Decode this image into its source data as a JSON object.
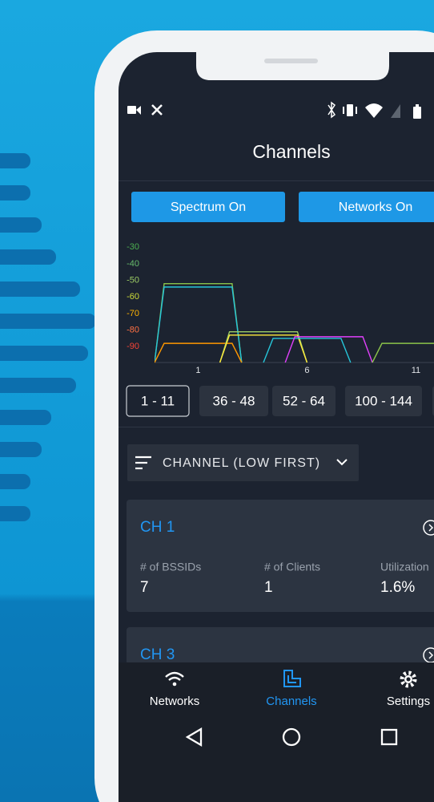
{
  "header": {
    "title": "Channels"
  },
  "toggles": [
    "Spectrum On",
    "Networks On"
  ],
  "spectrum": {
    "yticks": [
      -30,
      -40,
      -50,
      -60,
      -70,
      -80,
      -90
    ],
    "ytick_colors": [
      "#4caf50",
      "#66bb6a",
      "#9ccc65",
      "#cddc39",
      "#ffb300",
      "#ff7043",
      "#f44336"
    ],
    "ylim": [
      -26,
      -101
    ],
    "xticks": [
      1,
      6,
      11
    ],
    "xlim": [
      -1,
      11.83
    ],
    "networks": [
      {
        "channel": 1,
        "signal": -52,
        "color": "#8bc34a"
      },
      {
        "channel": 1,
        "signal": -54,
        "color": "#26c6da"
      },
      {
        "channel": 1,
        "signal": -88,
        "color": "#ff9800"
      },
      {
        "channel": 4,
        "signal": -81,
        "color": "#9ccc65"
      },
      {
        "channel": 4,
        "signal": -83,
        "color": "#ffeb3b"
      },
      {
        "channel": 6,
        "signal": -85,
        "color": "#26c6da"
      },
      {
        "channel": 7,
        "signal": -84,
        "color": "#e040fb"
      },
      {
        "channel": 11,
        "signal": -88,
        "color": "#8bc34a"
      }
    ]
  },
  "bands": [
    "1 - 11",
    "36 - 48",
    "52 - 64",
    "100 - 144"
  ],
  "selected_band": 0,
  "sort": "CHANNEL (LOW FIRST)",
  "cards": [
    {
      "title": "CH 1",
      "stats": [
        {
          "label": "# of BSSIDs",
          "value": "7"
        },
        {
          "label": "# of Clients",
          "value": "1"
        },
        {
          "label": "Utilization",
          "value": "1.6%"
        }
      ]
    },
    {
      "title": "CH 3"
    }
  ],
  "nav": [
    "Networks",
    "Channels",
    "Settings"
  ],
  "active_nav": 1
}
